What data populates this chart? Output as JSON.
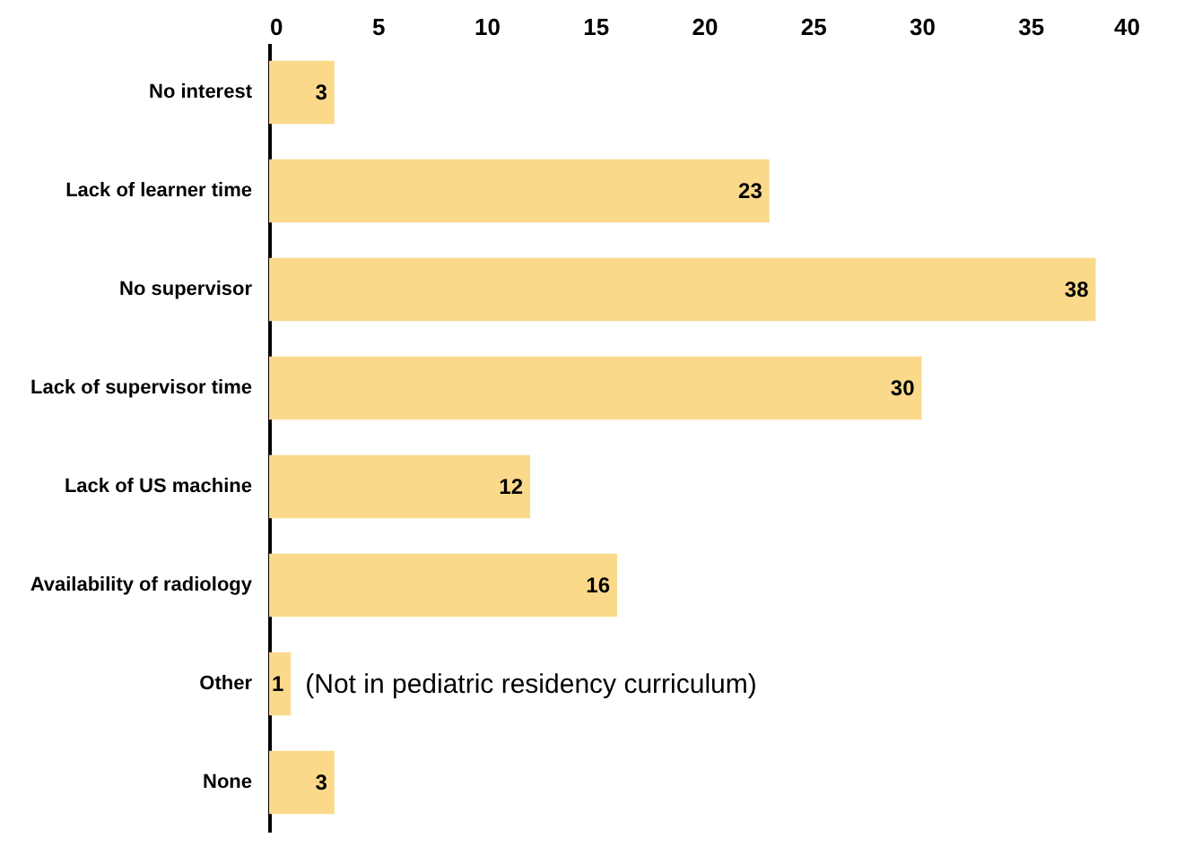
{
  "chart_data": {
    "type": "bar",
    "orientation": "horizontal",
    "categories": [
      "No interest",
      "Lack of learner time",
      "No supervisor",
      "Lack of supervisor time",
      "Lack of US machine",
      "Availability of radiology",
      "Other",
      "None"
    ],
    "values": [
      3,
      23,
      38,
      30,
      12,
      16,
      1,
      3
    ],
    "color": "#fbd98a",
    "xlim": [
      0,
      40
    ],
    "xticks": [
      0,
      5,
      10,
      15,
      20,
      25,
      30,
      35,
      40
    ],
    "grid": false,
    "data_labels": true,
    "annotations": [
      {
        "text": "(Not in pediatric residency curriculum)",
        "x": 1,
        "y": "Other"
      }
    ]
  }
}
